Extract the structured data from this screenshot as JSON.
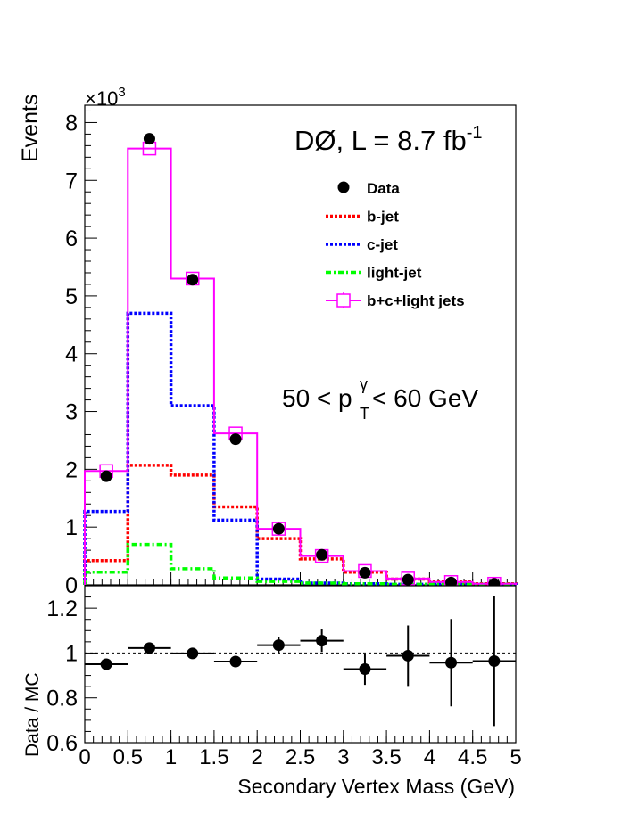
{
  "chart_data": [
    {
      "type": "histogram",
      "bin_edges": [
        0,
        0.5,
        1,
        1.5,
        2,
        2.5,
        3,
        3.5,
        4,
        4.5,
        5
      ],
      "x_centers": [
        0.25,
        0.75,
        1.25,
        1.75,
        2.25,
        2.75,
        3.25,
        3.75,
        4.25,
        4.75
      ],
      "ylabel": "Events",
      "y_multiplier": "×10",
      "y_multiplier_exp": "3",
      "ylim": [
        0,
        8.3
      ],
      "yticks": [
        0,
        1,
        2,
        3,
        4,
        5,
        6,
        7,
        8
      ],
      "annotations": {
        "experiment": "DØ, L = 8.7 fb",
        "experiment_sup": "-1",
        "pt_left": "50 < p",
        "pt_sup": "γ",
        "pt_sub": "T",
        "pt_right": " < 60 GeV"
      },
      "legend_position": "top-right",
      "legend": [
        {
          "label": "Data",
          "style": "marker",
          "color": "#000000"
        },
        {
          "label": "b-jet",
          "style": "dotted",
          "color": "#ff0000"
        },
        {
          "label": "c-jet",
          "style": "dotted",
          "color": "#0000ff"
        },
        {
          "label": "light-jet",
          "style": "dashdot",
          "color": "#00ff00"
        },
        {
          "label": "b+c+light jets",
          "style": "open-square",
          "color": "#ff00ff"
        }
      ],
      "series": [
        {
          "name": "Data",
          "kind": "points",
          "color": "#000000",
          "values": [
            1.88,
            7.72,
            5.28,
            2.52,
            0.97,
            0.52,
            0.21,
            0.09,
            0.04,
            0.02
          ]
        },
        {
          "name": "b-jet",
          "kind": "step",
          "color": "#ff0000",
          "values": [
            0.42,
            2.07,
            1.9,
            1.35,
            0.8,
            0.45,
            0.22,
            0.1,
            0.05,
            0.02
          ]
        },
        {
          "name": "c-jet",
          "kind": "step",
          "color": "#0000ff",
          "values": [
            1.27,
            4.7,
            3.1,
            1.12,
            0.1,
            0.03,
            0.02,
            0.01,
            0.01,
            0.01
          ]
        },
        {
          "name": "light-jet",
          "kind": "step",
          "color": "#00ff00",
          "values": [
            0.22,
            0.7,
            0.28,
            0.12,
            0.06,
            0.03,
            0.02,
            0.01,
            0.01,
            0.01
          ]
        },
        {
          "name": "b+c+light jets",
          "kind": "step-marker",
          "color": "#ff00ff",
          "values": [
            1.97,
            7.55,
            5.3,
            2.62,
            0.97,
            0.5,
            0.24,
            0.11,
            0.05,
            0.02
          ]
        }
      ]
    },
    {
      "type": "scatter",
      "xlabel": "Secondary Vertex Mass (GeV)",
      "ylabel": "Data / MC",
      "xlim": [
        0,
        5
      ],
      "ylim": [
        0.6,
        1.3
      ],
      "xticks": [
        0,
        0.5,
        1,
        1.5,
        2,
        2.5,
        3,
        3.5,
        4,
        4.5,
        5
      ],
      "xtick_labels": [
        "0",
        "0.5",
        "1",
        "1.5",
        "2",
        "2.5",
        "3",
        "3.5",
        "4",
        "4.5",
        "5"
      ],
      "yticks": [
        0.6,
        0.8,
        1,
        1.2
      ],
      "ytick_labels": [
        "0.6",
        "0.8",
        "1",
        "1.2"
      ],
      "reference_line": 1.0,
      "series": [
        {
          "name": "Data / MC",
          "color": "#000000",
          "x": [
            0.25,
            0.75,
            1.25,
            1.75,
            2.25,
            2.75,
            3.25,
            3.75,
            4.25,
            4.75
          ],
          "x_err": [
            0.25,
            0.25,
            0.25,
            0.25,
            0.25,
            0.25,
            0.25,
            0.25,
            0.25,
            0.25
          ],
          "y": [
            0.95,
            1.022,
            0.998,
            0.962,
            1.035,
            1.055,
            0.928,
            0.988,
            0.957,
            0.964
          ],
          "y_err": [
            0.02,
            0.012,
            0.012,
            0.02,
            0.035,
            0.05,
            0.07,
            0.135,
            0.195,
            0.29
          ]
        }
      ]
    }
  ]
}
